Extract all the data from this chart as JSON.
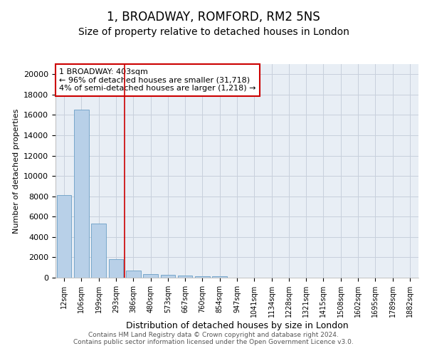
{
  "title": "1, BROADWAY, ROMFORD, RM2 5NS",
  "subtitle": "Size of property relative to detached houses in London",
  "xlabel": "Distribution of detached houses by size in London",
  "ylabel": "Number of detached properties",
  "categories": [
    "12sqm",
    "106sqm",
    "199sqm",
    "293sqm",
    "386sqm",
    "480sqm",
    "573sqm",
    "667sqm",
    "760sqm",
    "854sqm",
    "947sqm",
    "1041sqm",
    "1134sqm",
    "1228sqm",
    "1321sqm",
    "1415sqm",
    "1508sqm",
    "1602sqm",
    "1695sqm",
    "1789sqm",
    "1882sqm"
  ],
  "values": [
    8100,
    16500,
    5300,
    1850,
    700,
    350,
    280,
    200,
    170,
    130,
    0,
    0,
    0,
    0,
    0,
    0,
    0,
    0,
    0,
    0,
    0
  ],
  "bar_color": "#b8d0e8",
  "bar_edge_color": "#6a9ec5",
  "vline_x_idx": 3.5,
  "vline_color": "#cc0000",
  "annotation_line1": "1 BROADWAY: 403sqm",
  "annotation_line2": "← 96% of detached houses are smaller (31,718)",
  "annotation_line3": "4% of semi-detached houses are larger (1,218) →",
  "annotation_box_color": "#ffffff",
  "annotation_box_edge": "#cc0000",
  "ylim": [
    0,
    21000
  ],
  "yticks": [
    0,
    2000,
    4000,
    6000,
    8000,
    10000,
    12000,
    14000,
    16000,
    18000,
    20000
  ],
  "grid_color": "#c8d0dc",
  "bg_color": "#e8eef5",
  "footer": "Contains HM Land Registry data © Crown copyright and database right 2024.\nContains public sector information licensed under the Open Government Licence v3.0.",
  "title_fontsize": 12,
  "subtitle_fontsize": 10,
  "xlabel_fontsize": 9,
  "ylabel_fontsize": 8,
  "tick_fontsize": 8,
  "annotation_fontsize": 8
}
